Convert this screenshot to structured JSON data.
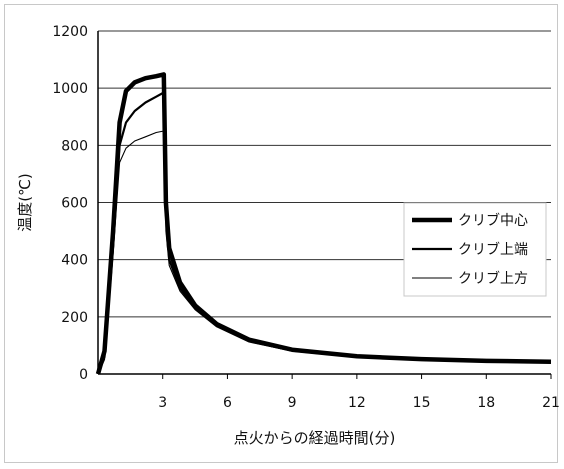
{
  "chart_data": {
    "type": "line",
    "xlabel": "点火からの経過時間(分)",
    "ylabel": "温度(℃)",
    "xlim": [
      0,
      21
    ],
    "ylim": [
      0,
      1200
    ],
    "xticks": [
      3,
      6,
      9,
      12,
      15,
      18,
      21
    ],
    "yticks": [
      0,
      200,
      400,
      600,
      800,
      1000,
      1200
    ],
    "grid": "horizontal",
    "legend_position": "right",
    "series": [
      {
        "name": "クリブ中心",
        "points": [
          [
            0,
            0
          ],
          [
            0.3,
            80
          ],
          [
            0.7,
            500
          ],
          [
            1.0,
            880
          ],
          [
            1.3,
            990
          ],
          [
            1.7,
            1020
          ],
          [
            2.2,
            1035
          ],
          [
            2.7,
            1042
          ],
          [
            3.05,
            1048
          ],
          [
            3.15,
            600
          ],
          [
            3.3,
            440
          ],
          [
            3.8,
            320
          ],
          [
            4.5,
            240
          ],
          [
            5.5,
            175
          ],
          [
            7,
            120
          ],
          [
            9,
            85
          ],
          [
            12,
            62
          ],
          [
            15,
            52
          ],
          [
            18,
            46
          ],
          [
            21,
            43
          ]
        ]
      },
      {
        "name": "クリブ上端",
        "points": [
          [
            0,
            0
          ],
          [
            0.3,
            60
          ],
          [
            0.7,
            450
          ],
          [
            1.0,
            800
          ],
          [
            1.3,
            880
          ],
          [
            1.7,
            920
          ],
          [
            2.2,
            950
          ],
          [
            2.7,
            970
          ],
          [
            3.05,
            985
          ],
          [
            3.15,
            560
          ],
          [
            3.3,
            400
          ],
          [
            3.8,
            300
          ],
          [
            4.5,
            230
          ],
          [
            5.5,
            170
          ],
          [
            7,
            115
          ],
          [
            9,
            82
          ],
          [
            12,
            60
          ],
          [
            15,
            50
          ],
          [
            18,
            45
          ],
          [
            21,
            42
          ]
        ]
      },
      {
        "name": "クリブ上方",
        "points": [
          [
            0,
            0
          ],
          [
            0.3,
            50
          ],
          [
            0.7,
            420
          ],
          [
            1.0,
            740
          ],
          [
            1.3,
            790
          ],
          [
            1.7,
            815
          ],
          [
            2.2,
            830
          ],
          [
            2.7,
            845
          ],
          [
            3.05,
            850
          ],
          [
            3.15,
            500
          ],
          [
            3.3,
            380
          ],
          [
            3.8,
            290
          ],
          [
            4.5,
            225
          ],
          [
            5.5,
            165
          ],
          [
            7,
            112
          ],
          [
            9,
            80
          ],
          [
            12,
            58
          ],
          [
            15,
            49
          ],
          [
            18,
            44
          ],
          [
            21,
            41
          ]
        ]
      }
    ]
  },
  "style": {
    "line_color": "#000000",
    "grid_color": "#333333"
  }
}
